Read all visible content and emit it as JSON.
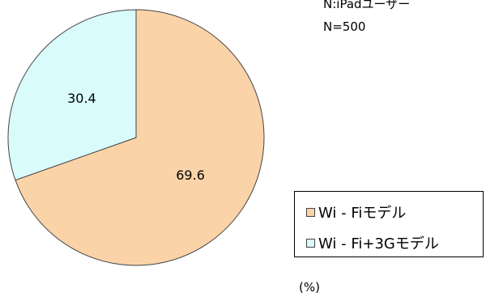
{
  "notes": {
    "respondents": "N:iPadユーザー",
    "sample_size": "N=500"
  },
  "unit": "(%)",
  "colors": {
    "wifi": "#FAD3A8",
    "wifi_3g": "#D9FBFB",
    "outline": "#444444"
  },
  "chart_data": {
    "type": "pie",
    "slices": [
      {
        "label": "Wi - Fiモデル",
        "value": 69.6,
        "display": "69.6",
        "color": "#FAD3A8"
      },
      {
        "label": "Wi - Fi+3Gモデル",
        "value": 30.4,
        "display": "30.4",
        "color": "#D9FBFB"
      }
    ],
    "legend_position": "right"
  }
}
